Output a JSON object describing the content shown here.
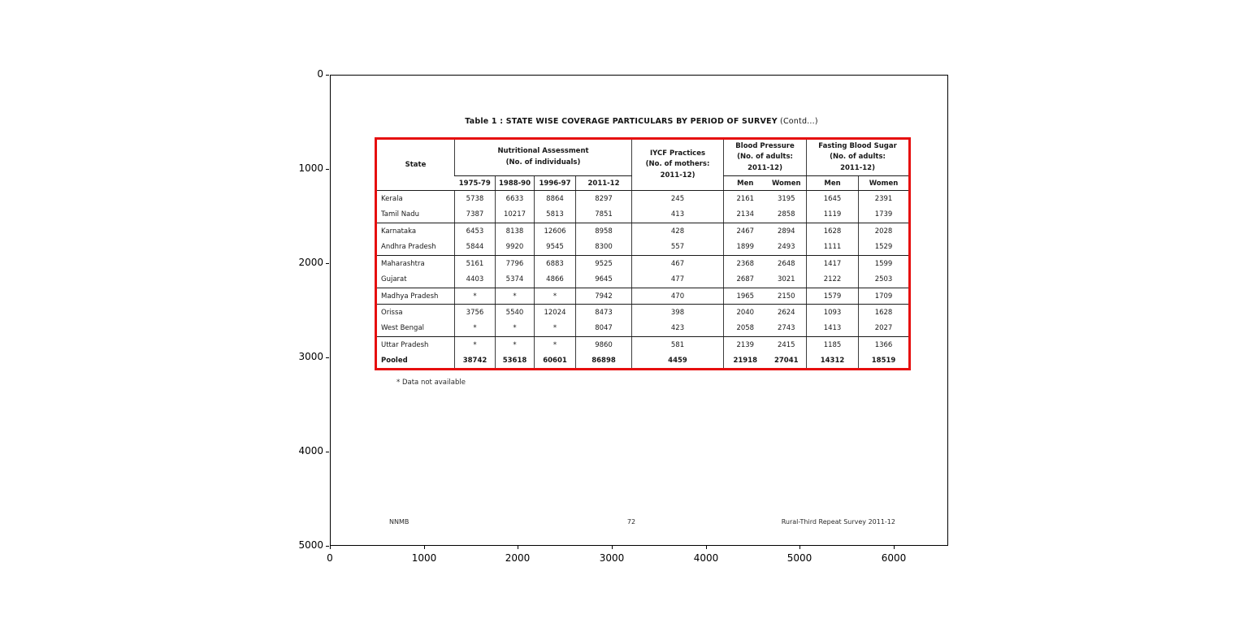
{
  "figure": {
    "x_ticks": [
      "0",
      "1000",
      "2000",
      "3000",
      "4000",
      "5000",
      "6000"
    ],
    "y_ticks": [
      "0",
      "1000",
      "2000",
      "3000",
      "4000",
      "5000"
    ]
  },
  "page": {
    "title_main": "Table 1 : STATE WISE COVERAGE PARTICULARS BY PERIOD OF SURVEY",
    "title_suffix": " (Contd...)",
    "footnote": "* Data not available",
    "footer_left": "NNMB",
    "footer_center": "72",
    "footer_right": "Rural-Third Repeat Survey 2011-12"
  },
  "table": {
    "headers": {
      "state": "State",
      "nutritional": "Nutritional Assessment\n(No. of individuals)",
      "years": [
        "1975-79",
        "1988-90",
        "1996-97",
        "2011-12"
      ],
      "iycf": "IYCF Practices\n(No. of mothers:\n2011-12)",
      "blood_pressure": "Blood Pressure\n(No. of adults:\n2011-12)",
      "fasting_blood_sugar": "Fasting  Blood Sugar\n(No. of adults:\n2011-12)",
      "bp_men": "Men",
      "bp_women": "Women",
      "fbs_men": "Men",
      "fbs_women": "Women"
    },
    "accent_border_color": "#e60f0f"
  },
  "chart_data": {
    "type": "table",
    "title": "Table 1 : STATE WISE COVERAGE PARTICULARS BY PERIOD OF SURVEY (Contd...)",
    "axes": {
      "xlim": [
        0,
        6600
      ],
      "ylim": [
        5000,
        0
      ],
      "grid": false
    },
    "columns": [
      "State",
      "Nutritional Assessment 1975-79",
      "Nutritional Assessment 1988-90",
      "Nutritional Assessment 1996-97",
      "Nutritional Assessment 2011-12",
      "IYCF Practices (No. of mothers: 2011-12)",
      "Blood Pressure Men (2011-12)",
      "Blood Pressure Women (2011-12)",
      "Fasting Blood Sugar Men (2011-12)",
      "Fasting Blood Sugar Women (2011-12)"
    ],
    "rows": [
      {
        "state": "Kerala",
        "values": [
          "5738",
          "6633",
          "8864",
          "8297",
          "245",
          "2161",
          "3195",
          "1645",
          "2391"
        ],
        "group_end": false,
        "bold": false
      },
      {
        "state": "Tamil Nadu",
        "values": [
          "7387",
          "10217",
          "5813",
          "7851",
          "413",
          "2134",
          "2858",
          "1119",
          "1739"
        ],
        "group_end": true,
        "bold": false
      },
      {
        "state": "Karnataka",
        "values": [
          "6453",
          "8138",
          "12606",
          "8958",
          "428",
          "2467",
          "2894",
          "1628",
          "2028"
        ],
        "group_end": false,
        "bold": false
      },
      {
        "state": "Andhra Pradesh",
        "values": [
          "5844",
          "9920",
          "9545",
          "8300",
          "557",
          "1899",
          "2493",
          "1111",
          "1529"
        ],
        "group_end": true,
        "bold": false
      },
      {
        "state": "Maharashtra",
        "values": [
          "5161",
          "7796",
          "6883",
          "9525",
          "467",
          "2368",
          "2648",
          "1417",
          "1599"
        ],
        "group_end": false,
        "bold": false
      },
      {
        "state": "Gujarat",
        "values": [
          "4403",
          "5374",
          "4866",
          "9645",
          "477",
          "2687",
          "3021",
          "2122",
          "2503"
        ],
        "group_end": true,
        "bold": false
      },
      {
        "state": "Madhya Pradesh",
        "values": [
          "*",
          "*",
          "*",
          "7942",
          "470",
          "1965",
          "2150",
          "1579",
          "1709"
        ],
        "group_end": true,
        "bold": false
      },
      {
        "state": "Orissa",
        "values": [
          "3756",
          "5540",
          "12024",
          "8473",
          "398",
          "2040",
          "2624",
          "1093",
          "1628"
        ],
        "group_end": false,
        "bold": false
      },
      {
        "state": "West Bengal",
        "values": [
          "*",
          "*",
          "*",
          "8047",
          "423",
          "2058",
          "2743",
          "1413",
          "2027"
        ],
        "group_end": true,
        "bold": false
      },
      {
        "state": "Uttar Pradesh",
        "values": [
          "*",
          "*",
          "*",
          "9860",
          "581",
          "2139",
          "2415",
          "1185",
          "1366"
        ],
        "group_end": false,
        "bold": false
      },
      {
        "state": "Pooled",
        "values": [
          "38742",
          "53618",
          "60601",
          "86898",
          "4459",
          "21918",
          "27041",
          "14312",
          "18519"
        ],
        "group_end": false,
        "bold": true
      }
    ],
    "footnote": "* Data not available",
    "footer": [
      "NNMB",
      "72",
      "Rural-Third Repeat Survey 2011-12"
    ]
  }
}
